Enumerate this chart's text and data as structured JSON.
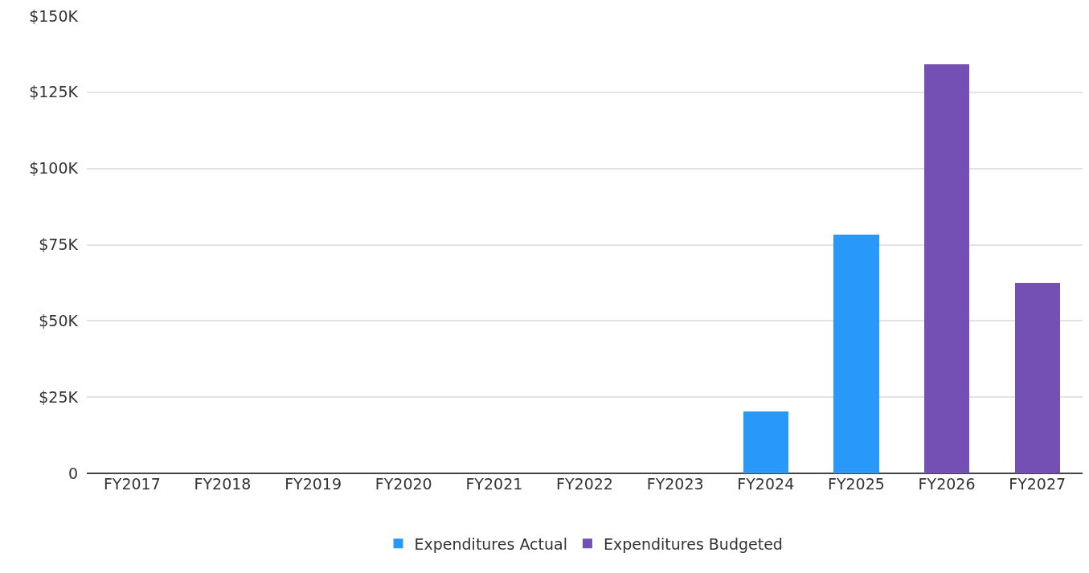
{
  "chart_data": {
    "type": "bar",
    "categories": [
      "FY2017",
      "FY2018",
      "FY2019",
      "FY2020",
      "FY2021",
      "FY2022",
      "FY2023",
      "FY2024",
      "FY2025",
      "FY2026",
      "FY2027"
    ],
    "series": [
      {
        "name": "Expenditures Actual",
        "color": "#2899f8",
        "values": [
          null,
          null,
          null,
          null,
          null,
          null,
          null,
          20.3,
          78.3,
          null,
          null
        ]
      },
      {
        "name": "Expenditures Budgeted",
        "color": "#7450b5",
        "values": [
          null,
          null,
          null,
          null,
          null,
          null,
          null,
          null,
          null,
          134.2,
          62.5
        ]
      }
    ],
    "stacked": true,
    "ylim": [
      0,
      150
    ],
    "yticks": [
      {
        "value": 0,
        "label": "0"
      },
      {
        "value": 25,
        "label": "$25K"
      },
      {
        "value": 50,
        "label": "$50K"
      },
      {
        "value": 75,
        "label": "$75K"
      },
      {
        "value": 100,
        "label": "$100K"
      },
      {
        "value": 125,
        "label": "$125K"
      },
      {
        "value": 150,
        "label": "$150K"
      }
    ],
    "grid": "y",
    "legend": "bottom"
  }
}
